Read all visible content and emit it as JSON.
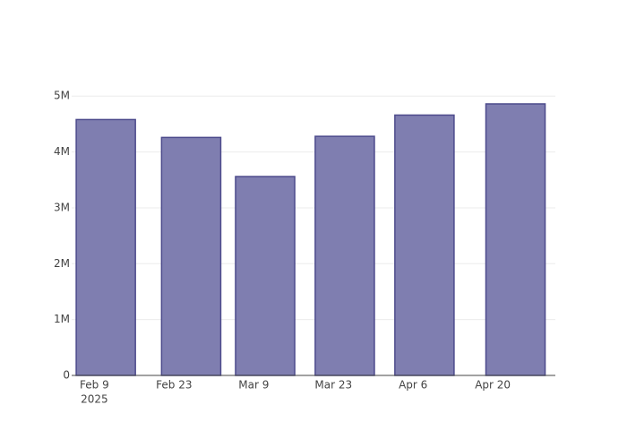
{
  "chart_data": {
    "type": "bar",
    "x": [
      "2025-02-11",
      "2025-02-26",
      "2025-03-11",
      "2025-03-25",
      "2025-04-08",
      "2025-04-24"
    ],
    "values": [
      4580000,
      4260000,
      3560000,
      4280000,
      4660000,
      4860000
    ],
    "color": "#7f7eb0",
    "edge_color": "#4d4b8c",
    "xlim": [
      "2025-02-05",
      "2025-05-01"
    ],
    "xticks": [
      {
        "value": "2025-02-09",
        "label": "Feb 9"
      },
      {
        "value": "2025-02-23",
        "label": "Feb 23"
      },
      {
        "value": "2025-03-09",
        "label": "Mar 9"
      },
      {
        "value": "2025-03-23",
        "label": "Mar 23"
      },
      {
        "value": "2025-04-06",
        "label": "Apr 6"
      },
      {
        "value": "2025-04-20",
        "label": "Apr 20"
      }
    ],
    "x_year_label": "2025",
    "ylim": [
      0,
      5100000
    ],
    "yticks": [
      0,
      {
        "value": 1000000,
        "label": "1M"
      },
      {
        "value": 2000000,
        "label": "2M"
      },
      {
        "value": 3000000,
        "label": "3M"
      },
      {
        "value": 4000000,
        "label": "4M"
      },
      {
        "value": 5000000,
        "label": "5M"
      }
    ],
    "grid": true
  }
}
